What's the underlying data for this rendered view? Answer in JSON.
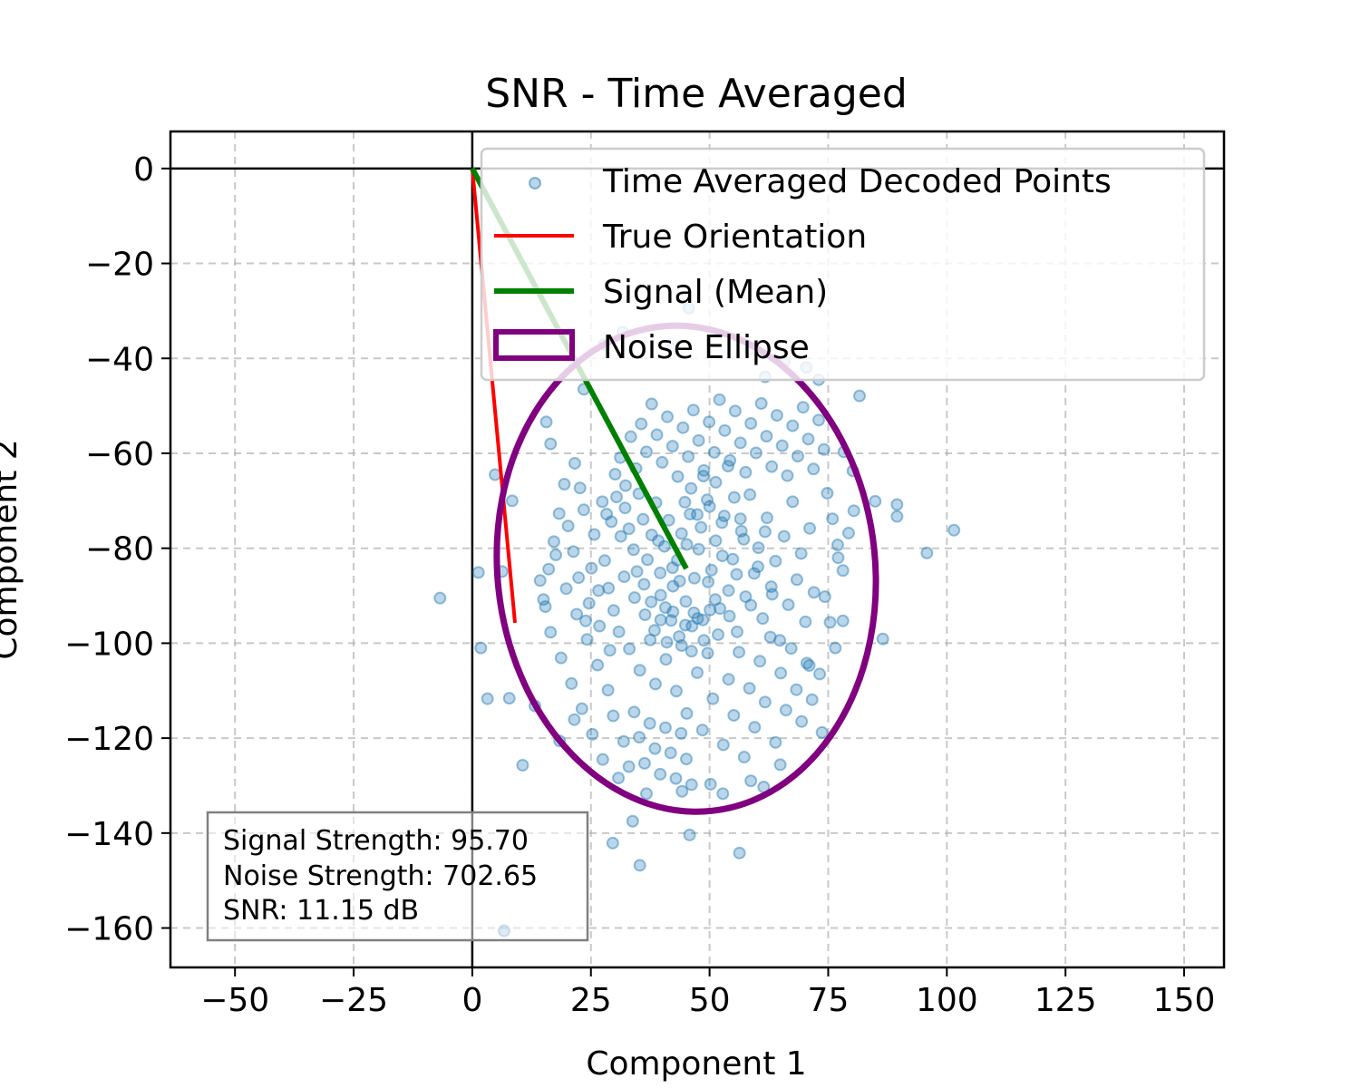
{
  "chart_data": {
    "type": "scatter",
    "title": "SNR - Time Averaged",
    "xlabel": "Component 1",
    "ylabel": "Component 2",
    "xlim": [
      -63.6,
      158.4
    ],
    "ylim": [
      -168.3,
      7.8
    ],
    "xticks": [
      -50,
      -25,
      0,
      25,
      50,
      75,
      100,
      125,
      150
    ],
    "xtick_labels": [
      "−50",
      "−25",
      "0",
      "25",
      "50",
      "75",
      "100",
      "125",
      "150"
    ],
    "yticks": [
      0,
      -20,
      -40,
      -60,
      -80,
      -100,
      -120,
      -140,
      -160
    ],
    "ytick_labels": [
      "0",
      "−20",
      "−40",
      "−60",
      "−80",
      "−100",
      "−120",
      "−140",
      "−160"
    ],
    "grid": true,
    "legend_position": "top-right",
    "legend": [
      {
        "label": "Time Averaged Decoded Points",
        "kind": "marker",
        "color": "#1f77b4"
      },
      {
        "label": "True Orientation",
        "kind": "line",
        "color": "#ff0000"
      },
      {
        "label": "Signal (Mean)",
        "kind": "line",
        "color": "#008000"
      },
      {
        "label": "Noise Ellipse",
        "kind": "patch",
        "color": "#800080"
      }
    ],
    "true_orientation": {
      "x": [
        0,
        9
      ],
      "y": [
        0,
        -95.7
      ],
      "color": "#ff0000"
    },
    "signal_mean": {
      "x": [
        0,
        45.1
      ],
      "y": [
        0,
        -84.3
      ],
      "color": "#008000"
    },
    "noise_ellipse": {
      "center": [
        45.1,
        -84.3
      ],
      "semi_axis_x": 39.8,
      "semi_axis_y": 51.3,
      "angle_deg": -6,
      "color": "#800080"
    },
    "scatter_color": "#1f77b4",
    "scatter_points": [
      [
        101.5,
        -76.2
      ],
      [
        95.8,
        -81.0
      ],
      [
        89.5,
        -70.8
      ],
      [
        89.5,
        -73.3
      ],
      [
        86.5,
        -99.1
      ],
      [
        84.9,
        -70.1
      ],
      [
        -6.8,
        -90.5
      ],
      [
        1.3,
        -85.1
      ],
      [
        1.8,
        -101.0
      ],
      [
        3.2,
        -111.7
      ],
      [
        6.7,
        -160.6
      ],
      [
        4.8,
        -64.5
      ],
      [
        35.3,
        -146.8
      ],
      [
        36.7,
        -131.7
      ],
      [
        29.6,
        -142.1
      ],
      [
        56.3,
        -144.2
      ],
      [
        45.8,
        -140.4
      ],
      [
        33.8,
        -137.5
      ],
      [
        15.6,
        -53.4
      ],
      [
        16.5,
        -58.0
      ],
      [
        23.5,
        -46.5
      ],
      [
        27.8,
        -37.1
      ],
      [
        31.7,
        -34.5
      ],
      [
        42.0,
        -38.0
      ],
      [
        45.6,
        -29.4
      ],
      [
        58.5,
        -38.0
      ],
      [
        61.7,
        -43.9
      ],
      [
        65.7,
        -40.7
      ],
      [
        70.4,
        -41.9
      ],
      [
        73.0,
        -44.5
      ],
      [
        81.6,
        -47.9
      ],
      [
        78.3,
        -59.7
      ],
      [
        80.2,
        -63.7
      ],
      [
        77.1,
        -82.0
      ],
      [
        78.1,
        -95.3
      ],
      [
        71.0,
        -104.7
      ],
      [
        73.7,
        -118.8
      ],
      [
        64.9,
        -125.6
      ],
      [
        58.7,
        -129.0
      ],
      [
        52.8,
        -131.7
      ],
      [
        61.4,
        -130.3
      ],
      [
        44.2,
        -131.2
      ],
      [
        50.2,
        -129.7
      ],
      [
        21.5,
        -116.1
      ],
      [
        18.4,
        -120.6
      ],
      [
        13.2,
        -113.2
      ],
      [
        7.8,
        -111.6
      ],
      [
        10.6,
        -125.7
      ],
      [
        6.3,
        -84.9
      ],
      [
        8.4,
        -70.0
      ],
      [
        27.4,
        -70.2
      ],
      [
        28.3,
        -72.8
      ],
      [
        29.3,
        -74.4
      ],
      [
        30.4,
        -69.2
      ],
      [
        31.3,
        -77.5
      ],
      [
        32.2,
        -71.5
      ],
      [
        33.0,
        -75.9
      ],
      [
        34.0,
        -80.3
      ],
      [
        35.1,
        -68.5
      ],
      [
        36.0,
        -73.9
      ],
      [
        36.9,
        -82.4
      ],
      [
        37.8,
        -77.2
      ],
      [
        38.7,
        -70.4
      ],
      [
        39.6,
        -85.2
      ],
      [
        40.5,
        -79.6
      ],
      [
        41.4,
        -74.1
      ],
      [
        42.3,
        -88.0
      ],
      [
        43.2,
        -82.5
      ],
      [
        44.1,
        -76.9
      ],
      [
        45.0,
        -91.2
      ],
      [
        45.9,
        -72.8
      ],
      [
        46.8,
        -86.3
      ],
      [
        47.7,
        -80.2
      ],
      [
        48.6,
        -95.1
      ],
      [
        49.5,
        -69.8
      ],
      [
        50.4,
        -84.6
      ],
      [
        51.3,
        -78.4
      ],
      [
        52.2,
        -92.7
      ],
      [
        53.1,
        -73.2
      ],
      [
        54.0,
        -88.9
      ],
      [
        54.9,
        -82.3
      ],
      [
        55.8,
        -97.6
      ],
      [
        56.7,
        -76.4
      ],
      [
        57.6,
        -90.2
      ],
      [
        58.5,
        -68.7
      ],
      [
        59.4,
        -85.3
      ],
      [
        60.3,
        -79.9
      ],
      [
        61.2,
        -94.8
      ],
      [
        62.1,
        -73.6
      ],
      [
        63.0,
        -88.1
      ],
      [
        63.9,
        -82.7
      ],
      [
        64.8,
        -99.4
      ],
      [
        65.7,
        -77.5
      ],
      [
        66.6,
        -91.9
      ],
      [
        67.5,
        -70.2
      ],
      [
        68.4,
        -86.6
      ],
      [
        69.3,
        -81.1
      ],
      [
        70.2,
        -95.5
      ],
      [
        71.1,
        -75.8
      ],
      [
        72.0,
        -89.3
      ],
      [
        28.7,
        -88.4
      ],
      [
        29.8,
        -93.1
      ],
      [
        30.9,
        -97.6
      ],
      [
        32.0,
        -86.0
      ],
      [
        33.1,
        -101.2
      ],
      [
        34.2,
        -90.4
      ],
      [
        35.3,
        -105.7
      ],
      [
        36.4,
        -94.0
      ],
      [
        37.5,
        -99.3
      ],
      [
        38.6,
        -108.6
      ],
      [
        39.7,
        -89.9
      ],
      [
        40.8,
        -103.4
      ],
      [
        41.9,
        -95.2
      ],
      [
        43.0,
        -110.1
      ],
      [
        44.1,
        -100.5
      ],
      [
        45.2,
        -114.8
      ],
      [
        46.3,
        -96.4
      ],
      [
        47.4,
        -106.2
      ],
      [
        48.5,
        -118.3
      ],
      [
        49.6,
        -102.1
      ],
      [
        50.7,
        -111.7
      ],
      [
        51.8,
        -98.2
      ],
      [
        52.9,
        -121.4
      ],
      [
        54.0,
        -107.6
      ],
      [
        55.1,
        -115.2
      ],
      [
        56.2,
        -101.9
      ],
      [
        57.3,
        -124.0
      ],
      [
        58.4,
        -109.5
      ],
      [
        59.5,
        -117.7
      ],
      [
        60.6,
        -103.8
      ],
      [
        61.7,
        -112.4
      ],
      [
        62.8,
        -98.7
      ],
      [
        63.9,
        -120.9
      ],
      [
        65.0,
        -106.3
      ],
      [
        66.1,
        -114.1
      ],
      [
        67.2,
        -101.1
      ],
      [
        68.3,
        -109.8
      ],
      [
        69.4,
        -116.5
      ],
      [
        70.5,
        -104.2
      ],
      [
        71.6,
        -111.9
      ],
      [
        20.2,
        -75.3
      ],
      [
        21.3,
        -80.7
      ],
      [
        22.4,
        -86.2
      ],
      [
        23.5,
        -71.9
      ],
      [
        24.6,
        -91.6
      ],
      [
        25.7,
        -77.1
      ],
      [
        26.8,
        -96.4
      ],
      [
        27.9,
        -82.6
      ],
      [
        29.0,
        -101.5
      ],
      [
        30.1,
        -64.4
      ],
      [
        31.2,
        -60.9
      ],
      [
        32.3,
        -66.8
      ],
      [
        33.4,
        -56.5
      ],
      [
        34.5,
        -63.2
      ],
      [
        35.6,
        -53.8
      ],
      [
        36.7,
        -59.7
      ],
      [
        37.8,
        -49.6
      ],
      [
        38.9,
        -56.1
      ],
      [
        40.0,
        -61.9
      ],
      [
        41.1,
        -52.3
      ],
      [
        42.2,
        -58.5
      ],
      [
        43.3,
        -64.9
      ],
      [
        44.4,
        -54.6
      ],
      [
        45.5,
        -60.7
      ],
      [
        46.6,
        -50.9
      ],
      [
        47.7,
        -57.3
      ],
      [
        48.8,
        -63.6
      ],
      [
        49.9,
        -53.4
      ],
      [
        51.0,
        -59.8
      ],
      [
        52.1,
        -48.7
      ],
      [
        53.2,
        -55.2
      ],
      [
        54.3,
        -61.5
      ],
      [
        55.4,
        -51.1
      ],
      [
        56.5,
        -57.8
      ],
      [
        57.6,
        -64.0
      ],
      [
        58.7,
        -53.7
      ],
      [
        59.8,
        -59.9
      ],
      [
        60.9,
        -49.5
      ],
      [
        62.0,
        -56.4
      ],
      [
        63.1,
        -62.8
      ],
      [
        64.2,
        -52.0
      ],
      [
        65.3,
        -58.4
      ],
      [
        66.4,
        -64.7
      ],
      [
        67.5,
        -54.2
      ],
      [
        68.6,
        -60.6
      ],
      [
        69.7,
        -50.3
      ],
      [
        70.8,
        -57.0
      ],
      [
        71.9,
        -63.3
      ],
      [
        73.0,
        -53.0
      ],
      [
        74.1,
        -59.2
      ],
      [
        14.3,
        -86.8
      ],
      [
        15.4,
        -92.3
      ],
      [
        16.5,
        -97.7
      ],
      [
        17.6,
        -81.4
      ],
      [
        18.7,
        -103.1
      ],
      [
        19.8,
        -88.5
      ],
      [
        20.9,
        -108.5
      ],
      [
        22.0,
        -93.9
      ],
      [
        23.1,
        -113.8
      ],
      [
        24.2,
        -99.2
      ],
      [
        25.3,
        -119.2
      ],
      [
        26.4,
        -104.6
      ],
      [
        27.5,
        -124.5
      ],
      [
        28.6,
        -109.9
      ],
      [
        29.7,
        -115.3
      ],
      [
        30.8,
        -128.4
      ],
      [
        31.9,
        -120.7
      ],
      [
        33.0,
        -126.0
      ],
      [
        34.1,
        -114.5
      ],
      [
        35.2,
        -119.8
      ],
      [
        36.3,
        -125.3
      ],
      [
        37.4,
        -116.9
      ],
      [
        38.5,
        -122.2
      ],
      [
        39.6,
        -127.6
      ],
      [
        40.7,
        -117.8
      ],
      [
        41.8,
        -123.1
      ],
      [
        42.9,
        -128.5
      ],
      [
        44.0,
        -119.0
      ],
      [
        45.1,
        -124.4
      ],
      [
        46.2,
        -129.8
      ],
      [
        74.8,
        -68.4
      ],
      [
        75.9,
        -73.8
      ],
      [
        77.0,
        -79.3
      ],
      [
        78.1,
        -84.7
      ],
      [
        74.3,
        -90.2
      ],
      [
        75.4,
        -95.6
      ],
      [
        76.5,
        -101.0
      ],
      [
        73.2,
        -106.5
      ],
      [
        79.3,
        -76.8
      ],
      [
        80.4,
        -72.1
      ],
      [
        34.7,
        -84.9
      ],
      [
        36.2,
        -87.6
      ],
      [
        37.7,
        -91.3
      ],
      [
        39.2,
        -78.4
      ],
      [
        40.7,
        -92.5
      ],
      [
        42.2,
        -84.1
      ],
      [
        43.7,
        -86.9
      ],
      [
        45.2,
        -79.2
      ],
      [
        46.7,
        -93.6
      ],
      [
        48.2,
        -75.6
      ],
      [
        49.7,
        -87.1
      ],
      [
        51.2,
        -90.8
      ],
      [
        52.7,
        -81.6
      ],
      [
        54.2,
        -94.3
      ],
      [
        55.7,
        -85.5
      ],
      [
        57.2,
        -78.1
      ],
      [
        58.7,
        -92.0
      ],
      [
        60.2,
        -83.9
      ],
      [
        61.7,
        -76.5
      ],
      [
        63.2,
        -89.7
      ],
      [
        44.8,
        -70.3
      ],
      [
        46.1,
        -67.4
      ],
      [
        47.4,
        -72.9
      ],
      [
        48.7,
        -64.8
      ],
      [
        50.0,
        -71.2
      ],
      [
        51.3,
        -66.1
      ],
      [
        52.6,
        -74.6
      ],
      [
        53.9,
        -62.7
      ],
      [
        55.2,
        -69.3
      ],
      [
        56.5,
        -73.8
      ],
      [
        38.4,
        -97.3
      ],
      [
        39.7,
        -95.1
      ],
      [
        41.0,
        -99.8
      ],
      [
        42.3,
        -93.4
      ],
      [
        43.6,
        -98.6
      ],
      [
        44.9,
        -96.2
      ],
      [
        46.2,
        -101.7
      ],
      [
        47.5,
        -94.8
      ],
      [
        48.8,
        -99.4
      ],
      [
        50.1,
        -93.0
      ],
      [
        25.1,
        -84.2
      ],
      [
        26.6,
        -88.9
      ],
      [
        23.9,
        -95.3
      ],
      [
        22.7,
        -67.3
      ],
      [
        21.6,
        -62.1
      ],
      [
        19.4,
        -66.5
      ],
      [
        18.3,
        -72.7
      ],
      [
        17.2,
        -78.6
      ],
      [
        16.1,
        -84.4
      ],
      [
        15.0,
        -90.8
      ]
    ]
  },
  "stats_box": {
    "line1": "Signal Strength: 95.70",
    "line2": "Noise Strength: 702.65",
    "line3": "SNR: 11.15 dB"
  }
}
